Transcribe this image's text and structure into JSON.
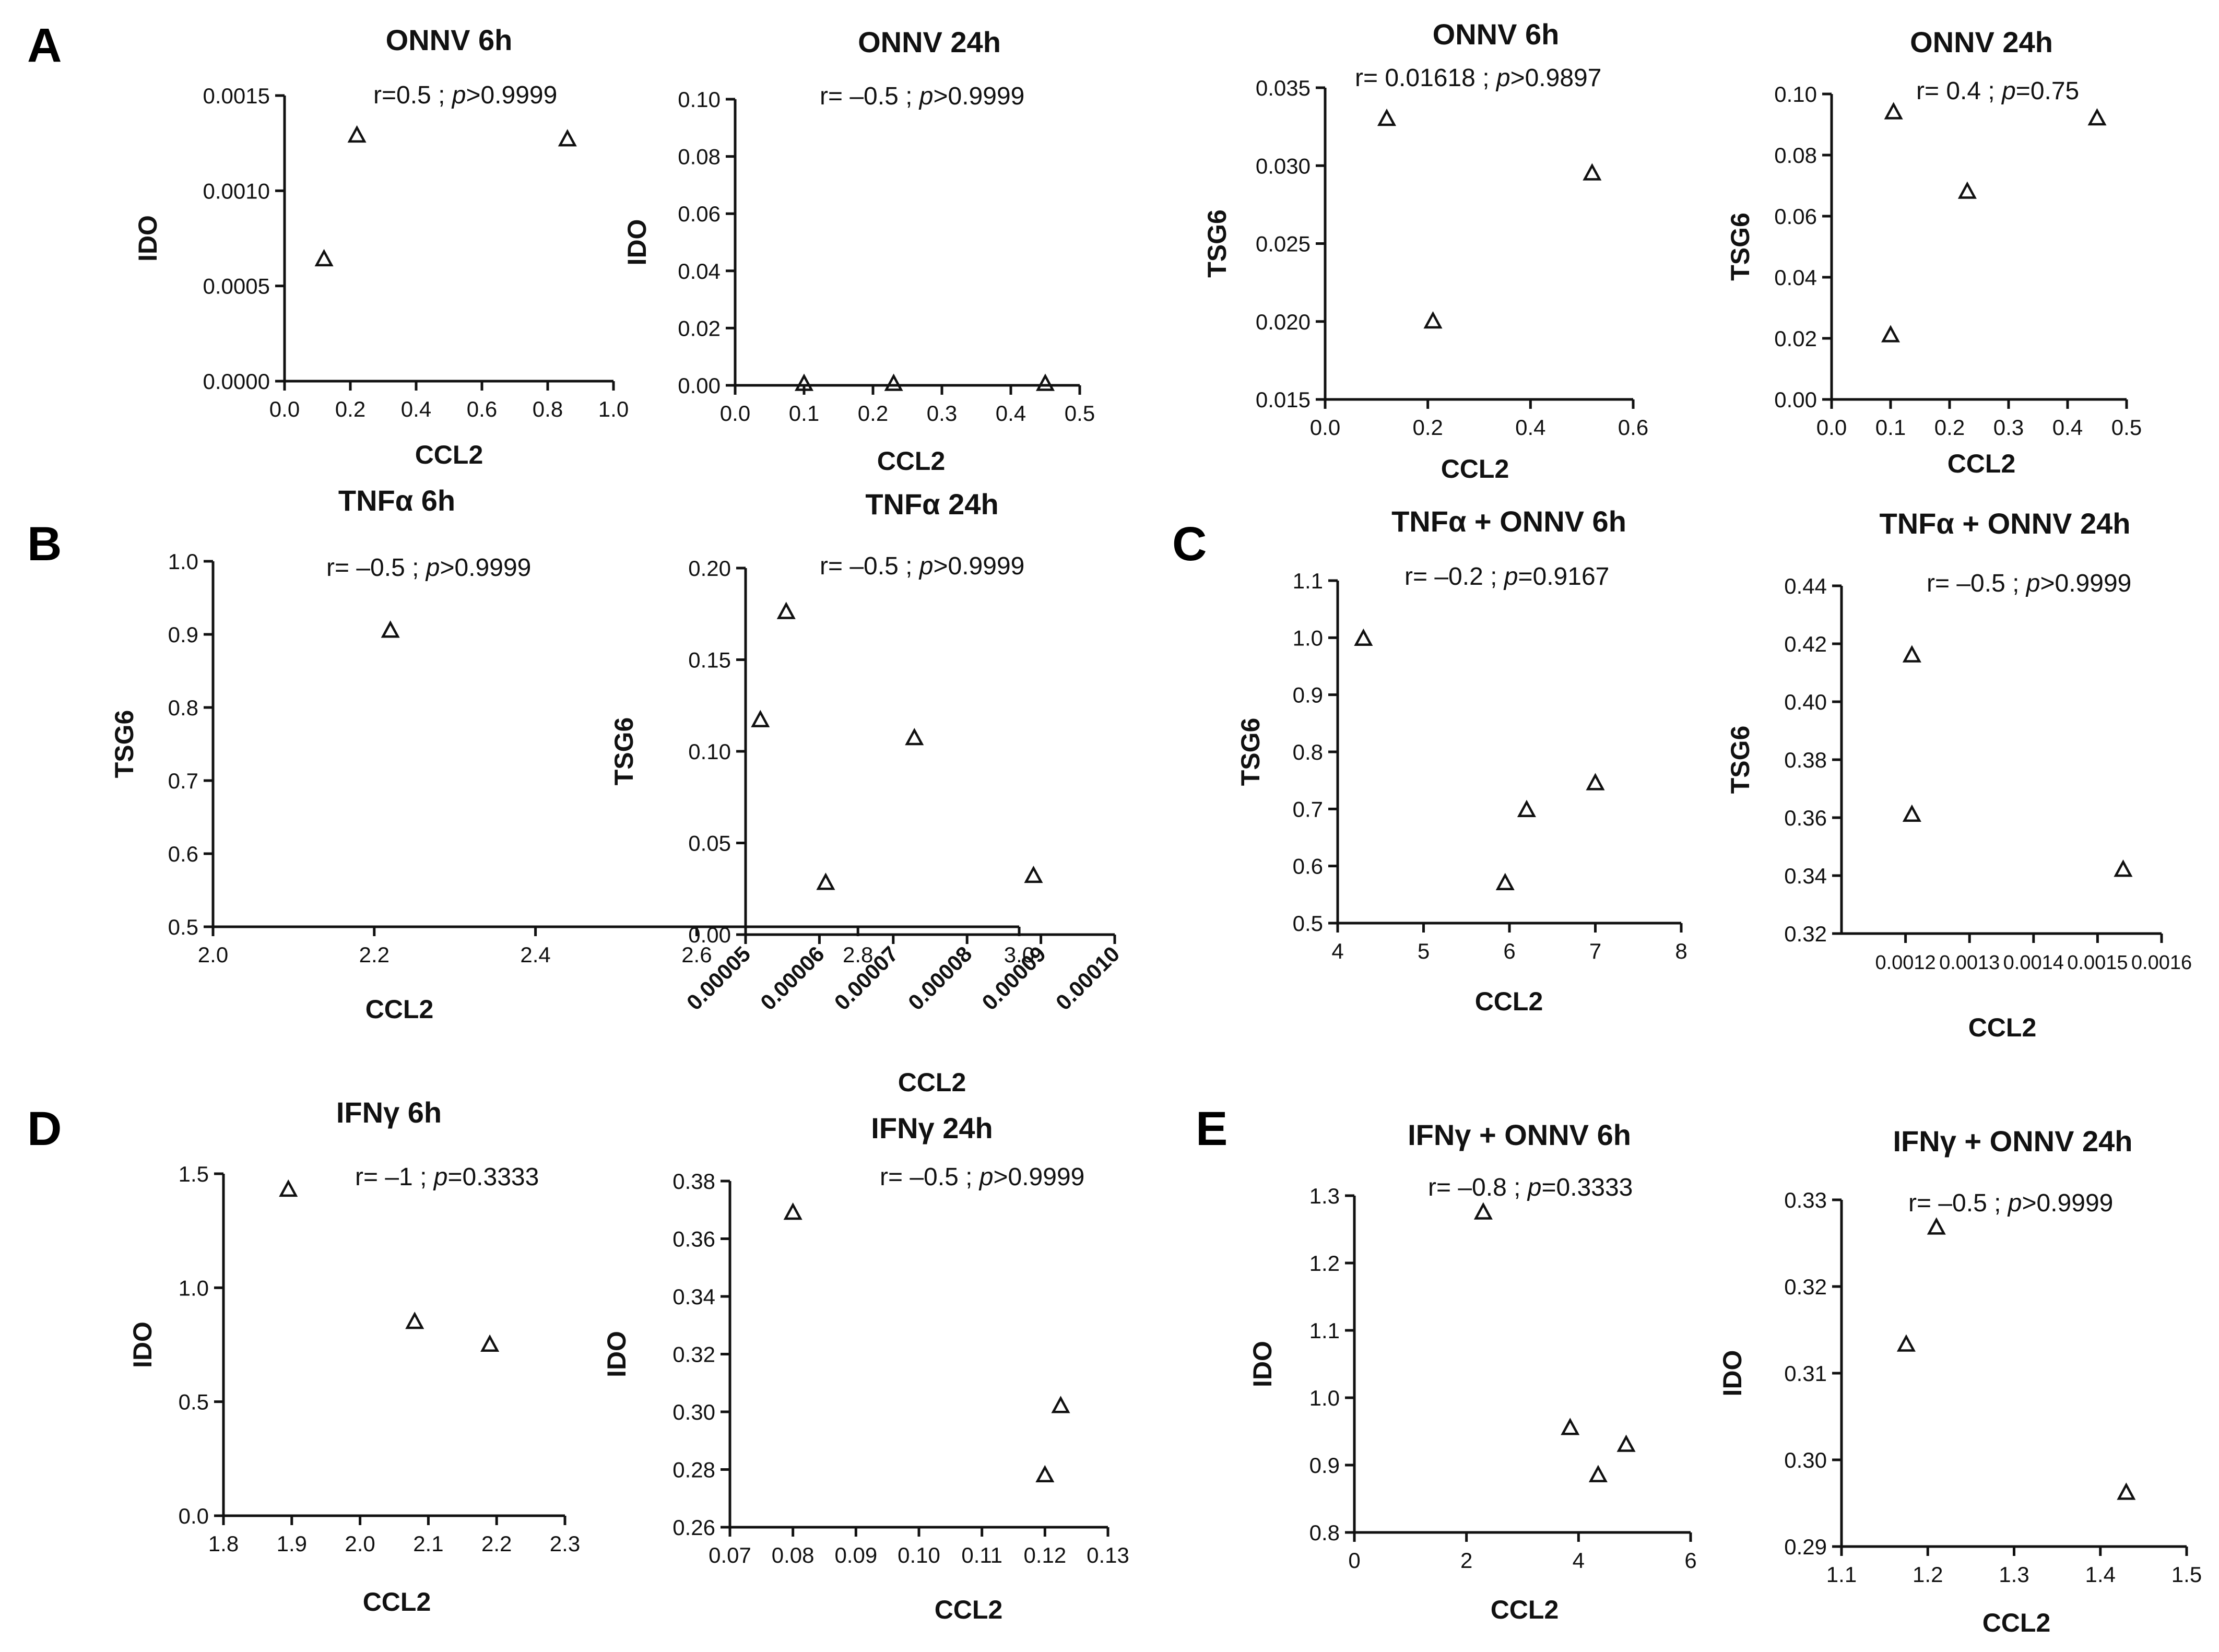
{
  "panel_letters": [
    "A",
    "B",
    "C",
    "D",
    "E"
  ],
  "chart_data": [
    {
      "type": "scatter",
      "title": "ONNV 6h",
      "xlabel": "CCL2",
      "ylabel": "IDO",
      "annotation": {
        "r": "r=0.5",
        "sep": " ; ",
        "p_italic": "p",
        "p_value": ">0.9999"
      },
      "xlim": [
        0,
        1
      ],
      "ylim": [
        0,
        0.0015
      ],
      "xticks": [
        "0.0",
        "0.2",
        "0.4",
        "0.6",
        "0.8",
        "1.0"
      ],
      "yticks": [
        "0.0000",
        "0.0005",
        "0.0010",
        "0.0015"
      ],
      "points": [
        {
          "x": 0.12,
          "y": 0.00064
        },
        {
          "x": 0.22,
          "y": 0.00129
        },
        {
          "x": 0.86,
          "y": 0.00127
        }
      ]
    },
    {
      "type": "scatter",
      "title": "ONNV 24h",
      "xlabel": "CCL2",
      "ylabel": "IDO",
      "annotation": {
        "r": "r= –0.5",
        "sep": " ; ",
        "p_italic": "p",
        "p_value": ">0.9999"
      },
      "xlim": [
        0,
        0.5
      ],
      "ylim": [
        0,
        0.1
      ],
      "xticks": [
        "0.0",
        "0.1",
        "0.2",
        "0.3",
        "0.4",
        "0.5"
      ],
      "yticks": [
        "0.00",
        "0.02",
        "0.04",
        "0.06",
        "0.08",
        "0.10"
      ],
      "points": [
        {
          "x": 0.1,
          "y": 0.0005
        },
        {
          "x": 0.23,
          "y": 0.0005
        },
        {
          "x": 0.45,
          "y": 0.0005
        }
      ]
    },
    {
      "type": "scatter",
      "title": "ONNV 6h",
      "xlabel": "CCL2",
      "ylabel": "TSG6",
      "annotation": {
        "r": "r= 0.01618",
        "sep": " ; ",
        "p_italic": "p",
        "p_value": ">0.9897"
      },
      "xlim": [
        0,
        0.6
      ],
      "ylim": [
        0.015,
        0.035
      ],
      "xticks": [
        "0.0",
        "0.2",
        "0.4",
        "0.6"
      ],
      "yticks": [
        "0.015",
        "0.020",
        "0.025",
        "0.030",
        "0.035"
      ],
      "points": [
        {
          "x": 0.12,
          "y": 0.033
        },
        {
          "x": 0.21,
          "y": 0.02
        },
        {
          "x": 0.52,
          "y": 0.0295
        }
      ]
    },
    {
      "type": "scatter",
      "title": "ONNV 24h",
      "xlabel": "CCL2",
      "ylabel": "TSG6",
      "annotation": {
        "r": "r= 0.4",
        "sep": " ; ",
        "p_italic": "p",
        "p_value": "=0.75"
      },
      "xlim": [
        0,
        0.5
      ],
      "ylim": [
        0,
        0.1
      ],
      "xticks": [
        "0.0",
        "0.1",
        "0.2",
        "0.3",
        "0.4",
        "0.5"
      ],
      "yticks": [
        "0.00",
        "0.02",
        "0.04",
        "0.06",
        "0.08",
        "0.10"
      ],
      "points": [
        {
          "x": 0.1,
          "y": 0.021
        },
        {
          "x": 0.105,
          "y": 0.094
        },
        {
          "x": 0.23,
          "y": 0.068
        },
        {
          "x": 0.45,
          "y": 0.092
        }
      ]
    },
    {
      "type": "scatter",
      "title": "TNFα 6h",
      "xlabel": "CCL2",
      "ylabel": "TSG6",
      "annotation": {
        "r": "r= –0.5",
        "sep": " ; ",
        "p_italic": "p",
        "p_value": ">0.9999"
      },
      "xlim": [
        2.0,
        3.0
      ],
      "ylim": [
        0.5,
        1.0
      ],
      "xticks": [
        "2.0",
        "2.2",
        "2.4",
        "2.6",
        "2.8",
        "3.0"
      ],
      "yticks": [
        "0.5",
        "0.6",
        "0.7",
        "0.8",
        "0.9",
        "1.0"
      ],
      "points": [
        {
          "x": 2.22,
          "y": 0.905
        },
        {
          "x": 2.76,
          "y": 0.56
        },
        {
          "x": 2.87,
          "y": 0.758
        }
      ]
    },
    {
      "type": "scatter",
      "title": "TNFα 24h",
      "xlabel": "CCL2",
      "ylabel": "TSG6",
      "annotation": {
        "r": "r= –0.5",
        "sep": " ; ",
        "p_italic": "p",
        "p_value": ">0.9999"
      },
      "xlim": [
        5e-05,
        0.0001
      ],
      "ylim": [
        0,
        0.2
      ],
      "xtick_rotation": -45,
      "xticks": [
        "0.00005",
        "0.00006",
        "0.00007",
        "0.00008",
        "0.00009",
        "0.00010"
      ],
      "yticks": [
        "0.00",
        "0.05",
        "0.10",
        "0.15",
        "0.20"
      ],
      "points": [
        {
          "x": 5.2e-05,
          "y": 0.117
        },
        {
          "x": 5.55e-05,
          "y": 0.176
        },
        {
          "x": 8.9e-05,
          "y": 0.032
        }
      ]
    },
    {
      "type": "scatter",
      "title": "TNFα + ONNV 6h",
      "xlabel": "CCL2",
      "ylabel": "TSG6",
      "annotation": {
        "r": "r= –0.2",
        "sep": " ; ",
        "p_italic": "p",
        "p_value": "=0.9167"
      },
      "xlim": [
        4,
        8
      ],
      "ylim": [
        0.5,
        1.1
      ],
      "xticks": [
        "4",
        "5",
        "6",
        "7",
        "8"
      ],
      "yticks": [
        "0.5",
        "0.6",
        "0.7",
        "0.8",
        "0.9",
        "1.0",
        "1.1"
      ],
      "points": [
        {
          "x": 4.3,
          "y": 0.998
        },
        {
          "x": 5.95,
          "y": 0.57
        },
        {
          "x": 6.2,
          "y": 0.698
        },
        {
          "x": 7.0,
          "y": 0.745
        }
      ]
    },
    {
      "type": "scatter",
      "title": "TNFα + ONNV 24h",
      "xlabel": "CCL2",
      "ylabel": "TSG6",
      "annotation": {
        "r": "r= –0.5",
        "sep": " ; ",
        "p_italic": "p",
        "p_value": ">0.9999"
      },
      "xlim": [
        0.0011,
        0.0016
      ],
      "ylim": [
        0.32,
        0.44
      ],
      "xticks": [
        "0.0012",
        "0.0013",
        "0.0014",
        "0.0015",
        "0.0016"
      ],
      "xtick_positions": [
        0.0012,
        0.0013,
        0.0014,
        0.0015,
        0.0016
      ],
      "xtick_label_style": "compact",
      "yticks": [
        "0.32",
        "0.34",
        "0.36",
        "0.38",
        "0.40",
        "0.42",
        "0.44"
      ],
      "points": [
        {
          "x": 0.00121,
          "y": 0.416
        },
        {
          "x": 0.00121,
          "y": 0.361
        },
        {
          "x": 0.00154,
          "y": 0.342
        }
      ]
    },
    {
      "type": "scatter",
      "title": "IFNγ 6h",
      "xlabel": "CCL2",
      "ylabel": "IDO",
      "annotation": {
        "r": "r= –1",
        "sep": " ; ",
        "p_italic": "p",
        "p_value": "=0.3333"
      },
      "xlim": [
        1.8,
        2.3
      ],
      "ylim": [
        0,
        1.5
      ],
      "xticks": [
        "1.8",
        "1.9",
        "2.0",
        "2.1",
        "2.2",
        "2.3"
      ],
      "yticks": [
        "0.0",
        "0.5",
        "1.0",
        "1.5"
      ],
      "points": [
        {
          "x": 1.895,
          "y": 1.43
        },
        {
          "x": 2.08,
          "y": 0.85
        },
        {
          "x": 2.19,
          "y": 0.75
        }
      ]
    },
    {
      "type": "scatter",
      "title": "IFNγ 24h",
      "xlabel": "CCL2",
      "ylabel": "IDO",
      "annotation": {
        "r": "r= –0.5",
        "sep": " ; ",
        "p_italic": "p",
        "p_value": ">0.9999"
      },
      "xlim": [
        0.07,
        0.13
      ],
      "ylim": [
        0.26,
        0.38
      ],
      "xticks": [
        "0.07",
        "0.08",
        "0.09",
        "0.10",
        "0.11",
        "0.12",
        "0.13"
      ],
      "yticks": [
        "0.26",
        "0.28",
        "0.30",
        "0.32",
        "0.34",
        "0.36",
        "0.38"
      ],
      "points": [
        {
          "x": 0.08,
          "y": 0.369
        },
        {
          "x": 0.12,
          "y": 0.278
        },
        {
          "x": 0.1225,
          "y": 0.302
        }
      ]
    },
    {
      "type": "scatter",
      "title": "IFNγ + ONNV 6h",
      "xlabel": "CCL2",
      "ylabel": "IDO",
      "annotation": {
        "r": "r= –0.8",
        "sep": " ; ",
        "p_italic": "p",
        "p_value": "=0.3333"
      },
      "xlim": [
        0,
        6
      ],
      "ylim": [
        0.8,
        1.3
      ],
      "xticks": [
        "0",
        "2",
        "4",
        "6"
      ],
      "yticks": [
        "0.8",
        "0.9",
        "1.0",
        "1.1",
        "1.2",
        "1.3"
      ],
      "points": [
        {
          "x": 2.3,
          "y": 1.275
        },
        {
          "x": 3.85,
          "y": 0.955
        },
        {
          "x": 4.35,
          "y": 0.885
        },
        {
          "x": 4.85,
          "y": 0.93
        }
      ]
    },
    {
      "type": "scatter",
      "title": "IFNγ + ONNV 24h",
      "xlabel": "CCL2",
      "ylabel": "IDO",
      "annotation": {
        "r": "r= –0.5",
        "sep": " ; ",
        "p_italic": "p",
        "p_value": ">0.9999"
      },
      "xlim": [
        1.1,
        1.5
      ],
      "ylim": [
        0.29,
        0.33
      ],
      "xticks": [
        "1.1",
        "1.2",
        "1.3",
        "1.4",
        "1.5"
      ],
      "yticks": [
        "0.29",
        "0.30",
        "0.31",
        "0.32",
        "0.33"
      ],
      "points": [
        {
          "x": 1.175,
          "y": 0.3133
        },
        {
          "x": 1.21,
          "y": 0.3268
        },
        {
          "x": 1.43,
          "y": 0.2962
        }
      ]
    }
  ]
}
